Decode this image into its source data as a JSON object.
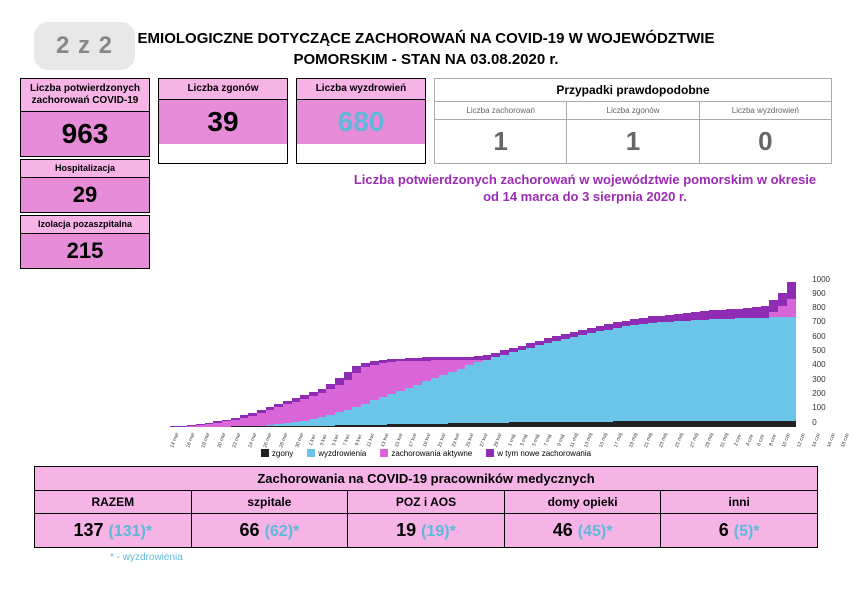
{
  "page_indicator": "2 z 2",
  "title_line1": "EMIOLOGICZNE DOTYCZĄCE ZACHOROWAŃ NA COVID-19 W WOJEWÓDZTWIE",
  "title_line2": "POMORSKIM - STAN NA 03.08.2020 r.",
  "stats": {
    "cases": {
      "label": "Liczba potwierdzonych zachorowań COVID-19",
      "value": "963"
    },
    "deaths": {
      "label": "Liczba zgonów",
      "value": "39"
    },
    "recovered": {
      "label": "Liczba wyzdrowień",
      "value": "680"
    },
    "hosp": {
      "label": "Hospitalizacja",
      "value": "29"
    },
    "isol": {
      "label": "Izolacja pozaszpitalna",
      "value": "215"
    }
  },
  "probable": {
    "title": "Przypadki prawdopodobne",
    "cols": [
      {
        "label": "Liczba zachorowań",
        "value": "1"
      },
      {
        "label": "Liczba zgonów",
        "value": "1"
      },
      {
        "label": "Liczba wyzdrowień",
        "value": "0"
      }
    ]
  },
  "chart": {
    "title_line1": "Liczba potwierdzonych zachorowań w województwie pomorskim w okresie",
    "title_line2": "od 14 marca do 3 sierpnia 2020 r.",
    "ymax": 1000,
    "ytick_step": 100,
    "colors": {
      "deaths": "#222222",
      "recovered": "#6bc5e8",
      "active": "#d966d9",
      "new": "#8e2db3",
      "grid": "#e0e0e0"
    },
    "legend": [
      {
        "label": "zgony",
        "color": "#222222"
      },
      {
        "label": "wyzdrowienia",
        "color": "#6bc5e8"
      },
      {
        "label": "zachorowania aktywne",
        "color": "#d966d9"
      },
      {
        "label": "w tym nowe zachorowania",
        "color": "#8e2db3"
      }
    ],
    "data": [
      {
        "x": "14 mar",
        "d": 0,
        "r": 0,
        "a": 2,
        "n": 2
      },
      {
        "x": "16 mar",
        "d": 0,
        "r": 0,
        "a": 5,
        "n": 5
      },
      {
        "x": "18 mar",
        "d": 0,
        "r": 0,
        "a": 10,
        "n": 5
      },
      {
        "x": "20 mar",
        "d": 0,
        "r": 0,
        "a": 18,
        "n": 8
      },
      {
        "x": "22 mar",
        "d": 0,
        "r": 0,
        "a": 25,
        "n": 7
      },
      {
        "x": "24 mar",
        "d": 0,
        "r": 0,
        "a": 35,
        "n": 10
      },
      {
        "x": "26 mar",
        "d": 0,
        "r": 0,
        "a": 45,
        "n": 10
      },
      {
        "x": "28 mar",
        "d": 1,
        "r": 0,
        "a": 60,
        "n": 15
      },
      {
        "x": "30 mar",
        "d": 1,
        "r": 0,
        "a": 75,
        "n": 15
      },
      {
        "x": "1 kwi",
        "d": 1,
        "r": 2,
        "a": 90,
        "n": 18
      },
      {
        "x": "3 kwi",
        "d": 2,
        "r": 5,
        "a": 110,
        "n": 20
      },
      {
        "x": "5 kwi",
        "d": 2,
        "r": 8,
        "a": 130,
        "n": 22
      },
      {
        "x": "7 kwi",
        "d": 3,
        "r": 12,
        "a": 150,
        "n": 22
      },
      {
        "x": "9 kwi",
        "d": 3,
        "r": 18,
        "a": 170,
        "n": 23
      },
      {
        "x": "11 kwi",
        "d": 4,
        "r": 25,
        "a": 190,
        "n": 25
      },
      {
        "x": "13 kwi",
        "d": 4,
        "r": 35,
        "a": 210,
        "n": 25
      },
      {
        "x": "15 kwi",
        "d": 5,
        "r": 45,
        "a": 230,
        "n": 26
      },
      {
        "x": "17 kwi",
        "d": 6,
        "r": 55,
        "a": 250,
        "n": 27
      },
      {
        "x": "19 kwi",
        "d": 7,
        "r": 70,
        "a": 280,
        "n": 35
      },
      {
        "x": "21 kwi",
        "d": 8,
        "r": 85,
        "a": 320,
        "n": 45
      },
      {
        "x": "23 kwi",
        "d": 9,
        "r": 100,
        "a": 360,
        "n": 50
      },
      {
        "x": "25 kwi",
        "d": 10,
        "r": 120,
        "a": 400,
        "n": 50
      },
      {
        "x": "27 kwi",
        "d": 11,
        "r": 140,
        "a": 420,
        "n": 31
      },
      {
        "x": "29 kwi",
        "d": 12,
        "r": 160,
        "a": 430,
        "n": 22
      },
      {
        "x": "1 maj",
        "d": 13,
        "r": 180,
        "a": 440,
        "n": 23
      },
      {
        "x": "3 maj",
        "d": 14,
        "r": 200,
        "a": 445,
        "n": 19
      },
      {
        "x": "5 maj",
        "d": 15,
        "r": 220,
        "a": 448,
        "n": 18
      },
      {
        "x": "7 maj",
        "d": 16,
        "r": 240,
        "a": 450,
        "n": 18
      },
      {
        "x": "9 maj",
        "d": 17,
        "r": 260,
        "a": 452,
        "n": 19
      },
      {
        "x": "11 maj",
        "d": 18,
        "r": 280,
        "a": 455,
        "n": 21
      },
      {
        "x": "13 maj",
        "d": 19,
        "r": 300,
        "a": 456,
        "n": 20
      },
      {
        "x": "15 maj",
        "d": 20,
        "r": 320,
        "a": 458,
        "n": 22
      },
      {
        "x": "17 maj",
        "d": 21,
        "r": 340,
        "a": 458,
        "n": 21
      },
      {
        "x": "19 maj",
        "d": 22,
        "r": 360,
        "a": 460,
        "n": 24
      },
      {
        "x": "21 maj",
        "d": 23,
        "r": 380,
        "a": 460,
        "n": 23
      },
      {
        "x": "23 maj",
        "d": 24,
        "r": 400,
        "a": 462,
        "n": 26
      },
      {
        "x": "25 maj",
        "d": 25,
        "r": 415,
        "a": 465,
        "n": 28
      },
      {
        "x": "27 maj",
        "d": 26,
        "r": 430,
        "a": 468,
        "n": 29
      },
      {
        "x": "29 maj",
        "d": 27,
        "r": 445,
        "a": 470,
        "n": 29
      },
      {
        "x": "31 maj",
        "d": 28,
        "r": 460,
        "a": 473,
        "n": 31
      },
      {
        "x": "2 cze",
        "d": 28,
        "r": 475,
        "a": 475,
        "n": 30
      },
      {
        "x": "4 cze",
        "d": 29,
        "r": 490,
        "a": 478,
        "n": 32
      },
      {
        "x": "6 cze",
        "d": 29,
        "r": 505,
        "a": 480,
        "n": 31
      },
      {
        "x": "8 cze",
        "d": 30,
        "r": 520,
        "a": 482,
        "n": 32
      },
      {
        "x": "10 cze",
        "d": 30,
        "r": 535,
        "a": 485,
        "n": 33
      },
      {
        "x": "12 cze",
        "d": 31,
        "r": 548,
        "a": 487,
        "n": 32
      },
      {
        "x": "14 cze",
        "d": 31,
        "r": 560,
        "a": 490,
        "n": 34
      },
      {
        "x": "16 cze",
        "d": 32,
        "r": 572,
        "a": 492,
        "n": 34
      },
      {
        "x": "18 cze",
        "d": 32,
        "r": 584,
        "a": 495,
        "n": 35
      },
      {
        "x": "20 cze",
        "d": 33,
        "r": 595,
        "a": 497,
        "n": 34
      },
      {
        "x": "22 cze",
        "d": 33,
        "r": 605,
        "a": 500,
        "n": 36
      },
      {
        "x": "24 cze",
        "d": 34,
        "r": 615,
        "a": 503,
        "n": 37
      },
      {
        "x": "26 cze",
        "d": 34,
        "r": 625,
        "a": 506,
        "n": 38
      },
      {
        "x": "28 cze",
        "d": 35,
        "r": 632,
        "a": 510,
        "n": 38
      },
      {
        "x": "30 cze",
        "d": 35,
        "r": 640,
        "a": 515,
        "n": 40
      },
      {
        "x": "2 lip",
        "d": 36,
        "r": 646,
        "a": 522,
        "n": 43
      },
      {
        "x": "4 lip",
        "d": 36,
        "r": 650,
        "a": 530,
        "n": 44
      },
      {
        "x": "6 lip",
        "d": 36,
        "r": 654,
        "a": 540,
        "n": 46
      },
      {
        "x": "8 lip",
        "d": 37,
        "r": 658,
        "a": 552,
        "n": 49
      },
      {
        "x": "10 lip",
        "d": 37,
        "r": 660,
        "a": 565,
        "n": 50
      },
      {
        "x": "12 lip",
        "d": 37,
        "r": 663,
        "a": 580,
        "n": 52
      },
      {
        "x": "14 lip",
        "d": 38,
        "r": 665,
        "a": 598,
        "n": 55
      },
      {
        "x": "16 lip",
        "d": 38,
        "r": 668,
        "a": 618,
        "n": 58
      },
      {
        "x": "18 lip",
        "d": 38,
        "r": 670,
        "a": 640,
        "n": 60
      },
      {
        "x": "20 lip",
        "d": 38,
        "r": 672,
        "a": 665,
        "n": 63
      },
      {
        "x": "22 lip",
        "d": 39,
        "r": 673,
        "a": 692,
        "n": 65
      },
      {
        "x": "24 lip",
        "d": 39,
        "r": 675,
        "a": 722,
        "n": 69
      },
      {
        "x": "26 lip",
        "d": 39,
        "r": 676,
        "a": 755,
        "n": 72
      },
      {
        "x": "28 lip",
        "d": 39,
        "r": 678,
        "a": 790,
        "n": 74
      },
      {
        "x": "30 lip",
        "d": 39,
        "r": 679,
        "a": 830,
        "n": 79
      },
      {
        "x": "1 sie",
        "d": 39,
        "r": 680,
        "a": 880,
        "n": 89
      },
      {
        "x": "3 sie",
        "d": 39,
        "r": 680,
        "a": 950,
        "n": 109
      }
    ]
  },
  "workers_table": {
    "title": "Zachorowania na COVID-19 pracowników medycznych",
    "cols": [
      {
        "label": "RAZEM",
        "main": "137",
        "sub": "(131)*"
      },
      {
        "label": "szpitale",
        "main": "66",
        "sub": "(62)*"
      },
      {
        "label": "POZ i AOS",
        "main": "19",
        "sub": "(19)*"
      },
      {
        "label": "domy opieki",
        "main": "46",
        "sub": "(45)*"
      },
      {
        "label": "inni",
        "main": "6",
        "sub": "(5)*"
      }
    ],
    "footnote": "* - wyzdrowienia"
  }
}
